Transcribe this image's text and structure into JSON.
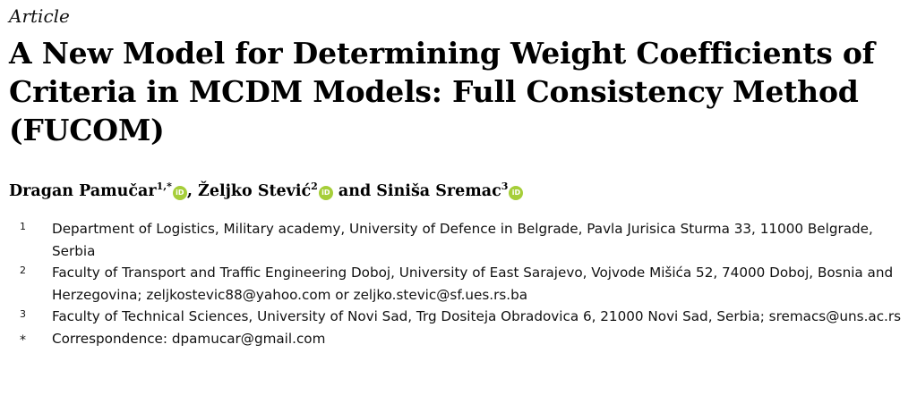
{
  "article_type": "Article",
  "title": "A New Model for Determining Weight Coefficients of Criteria in MCDM Models: Full Consistency Method (FUCOM)",
  "orcid_icon_label": "iD",
  "authors": [
    {
      "name": "Dragan Pamučar",
      "sup": "1,*",
      "sep": ", "
    },
    {
      "name": "Željko Stević",
      "sup": "2",
      "sep": " and "
    },
    {
      "name": "Siniša Sremac",
      "sup": "3",
      "sep": ""
    }
  ],
  "affiliations": [
    {
      "mark": "1",
      "text": "Department of Logistics, Military academy, University of Defence in Belgrade, Pavla Jurisica Sturma 33, 11000 Belgrade, Serbia"
    },
    {
      "mark": "2",
      "text": "Faculty of Transport and Traffic Engineering Doboj, University of East Sarajevo, Vojvode Mišića 52, 74000 Doboj, Bosnia and Herzegovina; zeljkostevic88@yahoo.com or zeljko.stevic@sf.ues.rs.ba"
    },
    {
      "mark": "3",
      "text": "Faculty of Technical Sciences, University of Novi Sad, Trg Dositeja Obradovica 6, 21000 Novi Sad, Serbia; sremacs@uns.ac.rs"
    },
    {
      "mark": "*",
      "text": "Correspondence: dpamucar@gmail.com"
    }
  ],
  "colors": {
    "orcid": "#a6ce39"
  }
}
